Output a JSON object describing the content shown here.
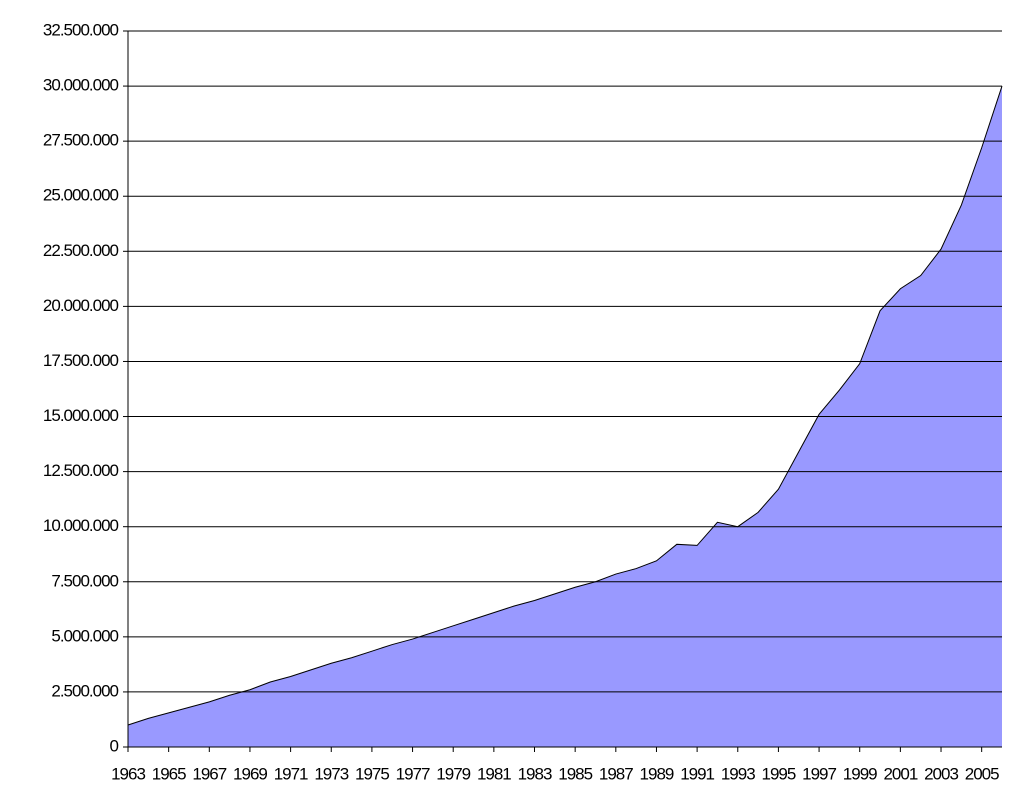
{
  "chart_data": {
    "type": "area",
    "x": [
      1963,
      1964,
      1965,
      1966,
      1967,
      1968,
      1969,
      1970,
      1971,
      1972,
      1973,
      1974,
      1975,
      1976,
      1977,
      1978,
      1979,
      1980,
      1981,
      1982,
      1983,
      1984,
      1985,
      1986,
      1987,
      1988,
      1989,
      1990,
      1991,
      1992,
      1993,
      1994,
      1995,
      1996,
      1997,
      1998,
      1999,
      2000,
      2001,
      2002,
      2003,
      2004,
      2005,
      2006
    ],
    "values": [
      1000000,
      1300000,
      1550000,
      1800000,
      2050000,
      2350000,
      2600000,
      2950000,
      3200000,
      3500000,
      3800000,
      4050000,
      4350000,
      4650000,
      4900000,
      5200000,
      5500000,
      5800000,
      6100000,
      6400000,
      6650000,
      6950000,
      7250000,
      7500000,
      7850000,
      8100000,
      8450000,
      9200000,
      9150000,
      10200000,
      10000000,
      10650000,
      11700000,
      13400000,
      15100000,
      16200000,
      17400000,
      19800000,
      20800000,
      21400000,
      22600000,
      24600000,
      27200000,
      30000000
    ],
    "color": "#9999ff",
    "xlim": [
      1963,
      2006
    ],
    "xticks": [
      1963,
      1965,
      1967,
      1969,
      1971,
      1973,
      1975,
      1977,
      1979,
      1981,
      1983,
      1985,
      1987,
      1989,
      1991,
      1993,
      1995,
      1997,
      1999,
      2001,
      2003,
      2005
    ],
    "ylim": [
      0,
      32500000
    ],
    "yticks": [
      0,
      {
        "value": 2500000,
        "label": "2.500.000"
      },
      {
        "value": 5000000,
        "label": "5.000.000"
      },
      {
        "value": 7500000,
        "label": "7.500.000"
      },
      {
        "value": 10000000,
        "label": "10.000.000"
      },
      {
        "value": 12500000,
        "label": "12.500.000"
      },
      {
        "value": 15000000,
        "label": "15.000.000"
      },
      {
        "value": 17500000,
        "label": "17.500.000"
      },
      {
        "value": 20000000,
        "label": "20.000.000"
      },
      {
        "value": 22500000,
        "label": "22.500.000"
      },
      {
        "value": 25000000,
        "label": "25.000.000"
      },
      {
        "value": 27500000,
        "label": "27.500.000"
      },
      {
        "value": 30000000,
        "label": "30.000.000"
      },
      {
        "value": 32500000,
        "label": "32.500.000"
      }
    ],
    "grid": true
  }
}
